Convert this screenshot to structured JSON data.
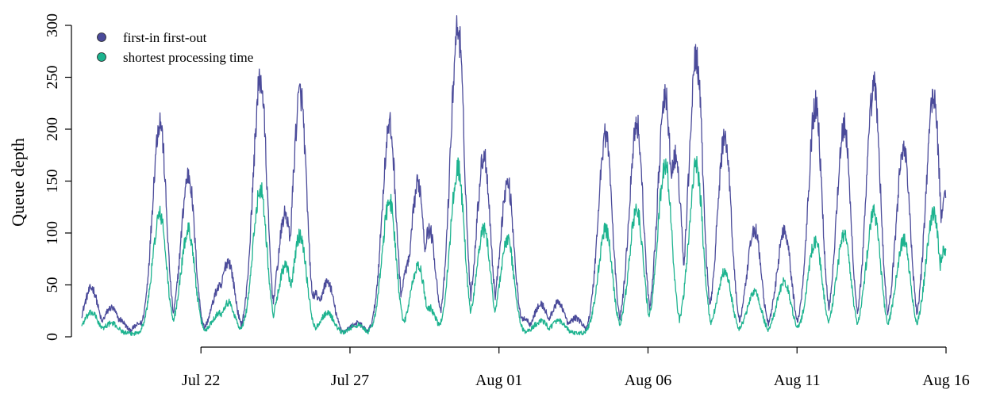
{
  "chart_data": {
    "type": "line",
    "ylabel": "Queue depth",
    "xlabel": "",
    "ylim": [
      0,
      300
    ],
    "yticks": [
      0,
      50,
      100,
      150,
      200,
      250,
      300
    ],
    "xlim": [
      "2024-07-18",
      "2024-08-16"
    ],
    "xticks": [
      {
        "date": "2024-07-22",
        "label": "Jul 22"
      },
      {
        "date": "2024-07-27",
        "label": "Jul 27"
      },
      {
        "date": "2024-08-01",
        "label": "Aug 01"
      },
      {
        "date": "2024-08-06",
        "label": "Aug 06"
      },
      {
        "date": "2024-08-11",
        "label": "Aug 11"
      },
      {
        "date": "2024-08-16",
        "label": "Aug 16"
      }
    ],
    "grid": false,
    "legend_position": "top-left",
    "series": [
      {
        "name": "first-in first-out",
        "color": "#4B4B9A",
        "peaks": [
          [
            "2024-07-18 08:00",
            44
          ],
          [
            "2024-07-19 00:00",
            25
          ],
          [
            "2024-07-19 06:00",
            14
          ],
          [
            "2024-07-20 00:00",
            10
          ],
          [
            "2024-07-20 15:00",
            205
          ],
          [
            "2024-07-21 14:00",
            153
          ],
          [
            "2024-07-22 15:00",
            45
          ],
          [
            "2024-07-22 22:00",
            70
          ],
          [
            "2024-07-24 00:00",
            245
          ],
          [
            "2024-07-24 20:00",
            115
          ],
          [
            "2024-07-25 08:00",
            232
          ],
          [
            "2024-07-25 20:00",
            38
          ],
          [
            "2024-07-26 06:00",
            50
          ],
          [
            "2024-07-27 06:00",
            10
          ],
          [
            "2024-07-28 08:00",
            200
          ],
          [
            "2024-07-29 00:00",
            70
          ],
          [
            "2024-07-29 07:00",
            145
          ],
          [
            "2024-07-29 16:00",
            100
          ],
          [
            "2024-07-30 15:00",
            295
          ],
          [
            "2024-07-31 12:00",
            172
          ],
          [
            "2024-08-01 07:00",
            145
          ],
          [
            "2024-08-01 20:00",
            15
          ],
          [
            "2024-08-02 10:00",
            28
          ],
          [
            "2024-08-03 00:00",
            30
          ],
          [
            "2024-08-03 14:00",
            15
          ],
          [
            "2024-08-04 14:00",
            193
          ],
          [
            "2024-08-05 15:00",
            203
          ],
          [
            "2024-08-06 14:00",
            227
          ],
          [
            "2024-08-06 22:00",
            170
          ],
          [
            "2024-08-07 15:00",
            266
          ],
          [
            "2024-08-08 14:00",
            190
          ],
          [
            "2024-08-09 14:00",
            100
          ],
          [
            "2024-08-10 14:00",
            100
          ],
          [
            "2024-08-11 15:00",
            220
          ],
          [
            "2024-08-12 14:00",
            200
          ],
          [
            "2024-08-13 14:00",
            238
          ],
          [
            "2024-08-14 14:00",
            180
          ],
          [
            "2024-08-15 14:00",
            230
          ],
          [
            "2024-08-15 23:00",
            130
          ]
        ]
      },
      {
        "name": "shortest processing time",
        "color": "#1DB38F",
        "peaks": [
          [
            "2024-07-18 08:00",
            20
          ],
          [
            "2024-07-19 00:00",
            10
          ],
          [
            "2024-07-20 15:00",
            115
          ],
          [
            "2024-07-21 14:00",
            100
          ],
          [
            "2024-07-22 15:00",
            20
          ],
          [
            "2024-07-22 22:00",
            30
          ],
          [
            "2024-07-24 00:00",
            140
          ],
          [
            "2024-07-24 20:00",
            65
          ],
          [
            "2024-07-25 08:00",
            95
          ],
          [
            "2024-07-26 06:00",
            20
          ],
          [
            "2024-07-27 06:00",
            8
          ],
          [
            "2024-07-28 08:00",
            128
          ],
          [
            "2024-07-29 07:00",
            65
          ],
          [
            "2024-07-29 16:00",
            25
          ],
          [
            "2024-07-30 15:00",
            160
          ],
          [
            "2024-07-31 12:00",
            100
          ],
          [
            "2024-08-01 07:00",
            90
          ],
          [
            "2024-08-02 10:00",
            12
          ],
          [
            "2024-08-03 00:00",
            12
          ],
          [
            "2024-08-04 14:00",
            100
          ],
          [
            "2024-08-05 15:00",
            120
          ],
          [
            "2024-08-06 14:00",
            163
          ],
          [
            "2024-08-07 15:00",
            162
          ],
          [
            "2024-08-08 14:00",
            60
          ],
          [
            "2024-08-09 14:00",
            40
          ],
          [
            "2024-08-10 14:00",
            50
          ],
          [
            "2024-08-11 15:00",
            90
          ],
          [
            "2024-08-12 14:00",
            95
          ],
          [
            "2024-08-13 14:00",
            117
          ],
          [
            "2024-08-14 14:00",
            90
          ],
          [
            "2024-08-15 14:00",
            115
          ],
          [
            "2024-08-15 23:00",
            80
          ]
        ]
      }
    ]
  }
}
